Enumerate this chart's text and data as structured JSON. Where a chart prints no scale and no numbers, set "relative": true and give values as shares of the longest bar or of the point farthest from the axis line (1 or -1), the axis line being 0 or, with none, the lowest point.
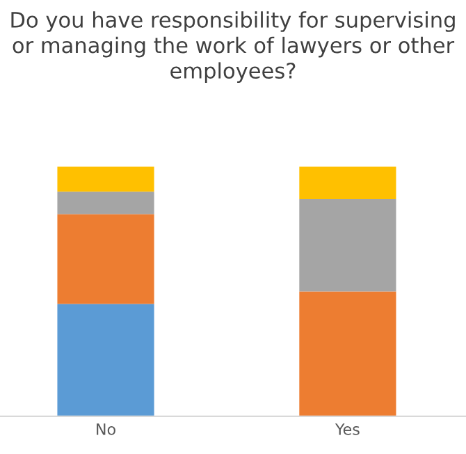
{
  "chart_data": {
    "type": "bar",
    "title": "Do you have responsibility for supervising or managing the work of lawyers or other employees?",
    "categories": [
      "No",
      "Yes"
    ],
    "stacked": true,
    "relative": true,
    "grid": false,
    "legend": false,
    "series": [
      {
        "color": "#5b9bd5",
        "values": [
          0.45,
          0
        ]
      },
      {
        "color": "#ed7d31",
        "values": [
          0.36,
          0.5
        ]
      },
      {
        "color": "#a5a5a5",
        "values": [
          0.09,
          0.37
        ]
      },
      {
        "color": "#ffc000",
        "values": [
          0.1,
          0.13
        ]
      }
    ]
  }
}
